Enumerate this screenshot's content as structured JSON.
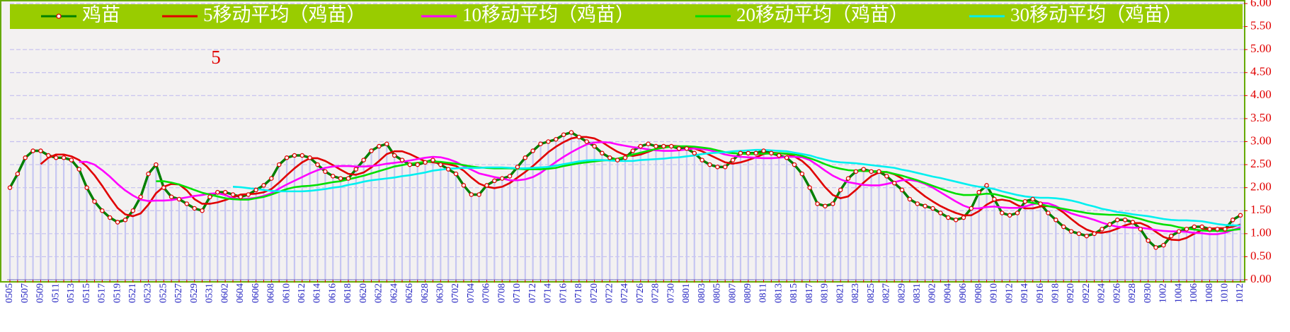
{
  "chart_data": {
    "type": "line",
    "annotation": "5",
    "legend": "top",
    "grid": true,
    "drop_lines": true,
    "categories": [
      "0505",
      null,
      "0507",
      null,
      "0509",
      null,
      "0511",
      null,
      "0513",
      null,
      "0515",
      null,
      "0517",
      null,
      "0519",
      null,
      "0521",
      null,
      "0523",
      null,
      "0525",
      null,
      "0527",
      null,
      "0529",
      null,
      "0531",
      null,
      "0602",
      null,
      "0604",
      null,
      "0606",
      null,
      "0608",
      null,
      "0610",
      null,
      "0612",
      null,
      "0614",
      null,
      "0616",
      null,
      "0618",
      null,
      "0620",
      null,
      "0622",
      null,
      "0624",
      null,
      "0626",
      null,
      "0628",
      null,
      "0630",
      null,
      "0702",
      null,
      "0704",
      null,
      "0706",
      null,
      "0708",
      null,
      "0710",
      null,
      "0712",
      null,
      "0714",
      null,
      "0716",
      null,
      "0718",
      null,
      "0720",
      null,
      "0722",
      null,
      "0724",
      null,
      "0726",
      null,
      "0728",
      null,
      "0730",
      null,
      "0801",
      null,
      "0803",
      null,
      "0805",
      null,
      "0807",
      null,
      "0809",
      null,
      "0811",
      null,
      "0813",
      null,
      "0815",
      null,
      "0817",
      null,
      "0819",
      null,
      "0821",
      null,
      "0823",
      null,
      "0825",
      null,
      "0827",
      null,
      "0829",
      null,
      "0831",
      null,
      "0902",
      null,
      "0904",
      null,
      "0906",
      null,
      "0908",
      null,
      "0910",
      null,
      "0912",
      null,
      "0914",
      null,
      "0916",
      null,
      "0918",
      null,
      "0920",
      null,
      "0922",
      null,
      "0924",
      null,
      "0926",
      null,
      "0928",
      null,
      "0930",
      null,
      "1002",
      null,
      "1004",
      null,
      "1006",
      null,
      "1008",
      null,
      "1010",
      null,
      "1012"
    ],
    "series": [
      {
        "name": "鸡苗",
        "color": "#008000",
        "values": [
          2.0,
          2.3,
          2.65,
          2.8,
          2.8,
          2.7,
          2.65,
          2.65,
          2.6,
          2.4,
          2.0,
          1.7,
          1.5,
          1.35,
          1.25,
          1.3,
          1.5,
          1.8,
          2.3,
          2.5,
          2.0,
          1.8,
          1.75,
          1.65,
          1.55,
          1.5,
          1.8,
          1.9,
          1.9,
          1.85,
          1.8,
          1.85,
          1.95,
          2.05,
          2.2,
          2.5,
          2.65,
          2.7,
          2.7,
          2.65,
          2.5,
          2.35,
          2.25,
          2.2,
          2.2,
          2.4,
          2.6,
          2.8,
          2.9,
          2.95,
          2.7,
          2.6,
          2.5,
          2.5,
          2.55,
          2.6,
          2.5,
          2.4,
          2.3,
          2.05,
          1.85,
          1.85,
          2.05,
          2.15,
          2.2,
          2.25,
          2.45,
          2.65,
          2.8,
          2.95,
          3.0,
          3.05,
          3.15,
          3.2,
          3.1,
          3.0,
          2.9,
          2.75,
          2.65,
          2.6,
          2.65,
          2.8,
          2.9,
          2.95,
          2.9,
          2.9,
          2.9,
          2.85,
          2.85,
          2.75,
          2.6,
          2.5,
          2.45,
          2.45,
          2.6,
          2.75,
          2.75,
          2.75,
          2.8,
          2.75,
          2.7,
          2.65,
          2.5,
          2.3,
          2.0,
          1.65,
          1.6,
          1.65,
          1.95,
          2.2,
          2.35,
          2.4,
          2.35,
          2.35,
          2.25,
          2.1,
          1.95,
          1.75,
          1.65,
          1.6,
          1.55,
          1.45,
          1.35,
          1.3,
          1.35,
          1.55,
          1.9,
          2.05,
          1.75,
          1.45,
          1.4,
          1.45,
          1.7,
          1.75,
          1.65,
          1.45,
          1.3,
          1.15,
          1.05,
          1.0,
          0.95,
          1.0,
          1.1,
          1.2,
          1.3,
          1.3,
          1.25,
          1.1,
          0.85,
          0.7,
          0.75,
          0.95,
          1.05,
          1.1,
          1.15,
          1.15,
          1.1,
          1.1,
          1.1,
          1.3,
          1.4
        ]
      },
      {
        "name": "5移动平均（鸡苗）",
        "color": "#e00000",
        "values": [
          null,
          null,
          null,
          null,
          2.51,
          2.65,
          2.72,
          2.72,
          2.68,
          2.6,
          2.46,
          2.27,
          2.04,
          1.79,
          1.56,
          1.42,
          1.38,
          1.44,
          1.63,
          1.88,
          2.02,
          2.08,
          2.07,
          1.94,
          1.75,
          1.65,
          1.65,
          1.68,
          1.73,
          1.79,
          1.85,
          1.86,
          1.87,
          1.9,
          1.97,
          2.11,
          2.27,
          2.42,
          2.55,
          2.64,
          2.64,
          2.58,
          2.49,
          2.39,
          2.3,
          2.28,
          2.33,
          2.44,
          2.58,
          2.73,
          2.79,
          2.79,
          2.73,
          2.65,
          2.57,
          2.55,
          2.53,
          2.51,
          2.47,
          2.37,
          2.22,
          2.09,
          2.02,
          1.99,
          2.02,
          2.1,
          2.22,
          2.34,
          2.47,
          2.62,
          2.77,
          2.89,
          2.99,
          3.07,
          3.1,
          3.1,
          3.07,
          2.99,
          2.88,
          2.78,
          2.71,
          2.69,
          2.72,
          2.78,
          2.84,
          2.89,
          2.91,
          2.9,
          2.88,
          2.85,
          2.79,
          2.71,
          2.63,
          2.55,
          2.52,
          2.55,
          2.6,
          2.66,
          2.73,
          2.76,
          2.75,
          2.73,
          2.68,
          2.58,
          2.43,
          2.22,
          2.01,
          1.84,
          1.77,
          1.81,
          1.95,
          2.11,
          2.25,
          2.33,
          2.34,
          2.29,
          2.2,
          2.08,
          1.94,
          1.81,
          1.7,
          1.6,
          1.52,
          1.45,
          1.4,
          1.4,
          1.49,
          1.63,
          1.72,
          1.74,
          1.71,
          1.62,
          1.55,
          1.55,
          1.59,
          1.6,
          1.57,
          1.46,
          1.32,
          1.19,
          1.09,
          1.03,
          1.02,
          1.05,
          1.11,
          1.18,
          1.23,
          1.23,
          1.16,
          1.04,
          0.93,
          0.87,
          0.86,
          0.91,
          1.0,
          1.08,
          1.11,
          1.12,
          1.12,
          1.15,
          1.2
        ]
      },
      {
        "name": "10移动平均（鸡苗）",
        "color": "#ff00ff",
        "values": [
          null,
          null,
          null,
          null,
          null,
          null,
          null,
          null,
          null,
          2.56,
          2.56,
          2.5,
          2.38,
          2.24,
          2.08,
          1.94,
          1.83,
          1.74,
          1.71,
          1.72,
          1.72,
          1.73,
          1.76,
          1.79,
          1.82,
          1.84,
          1.87,
          1.88,
          1.84,
          1.77,
          1.75,
          1.76,
          1.78,
          1.82,
          1.88,
          1.98,
          2.07,
          2.15,
          2.23,
          2.31,
          2.38,
          2.43,
          2.46,
          2.47,
          2.47,
          2.46,
          2.46,
          2.47,
          2.49,
          2.52,
          2.54,
          2.56,
          2.59,
          2.62,
          2.65,
          2.67,
          2.66,
          2.62,
          2.56,
          2.47,
          2.39,
          2.31,
          2.27,
          2.23,
          2.2,
          2.16,
          2.16,
          2.18,
          2.23,
          2.32,
          2.44,
          2.56,
          2.67,
          2.77,
          2.86,
          2.94,
          2.98,
          2.99,
          2.98,
          2.94,
          2.91,
          2.88,
          2.86,
          2.83,
          2.81,
          2.8,
          2.8,
          2.81,
          2.83,
          2.85,
          2.84,
          2.81,
          2.77,
          2.72,
          2.69,
          2.67,
          2.66,
          2.65,
          2.64,
          2.64,
          2.65,
          2.67,
          2.67,
          2.66,
          2.6,
          2.49,
          2.37,
          2.26,
          2.18,
          2.12,
          2.09,
          2.06,
          2.05,
          2.05,
          2.08,
          2.12,
          2.16,
          2.17,
          2.14,
          2.08,
          2.0,
          1.9,
          1.8,
          1.7,
          1.61,
          1.55,
          1.55,
          1.58,
          1.59,
          1.57,
          1.56,
          1.56,
          1.59,
          1.64,
          1.67,
          1.66,
          1.6,
          1.51,
          1.44,
          1.39,
          1.35,
          1.3,
          1.24,
          1.19,
          1.15,
          1.14,
          1.13,
          1.13,
          1.11,
          1.08,
          1.06,
          1.05,
          1.05,
          1.04,
          1.02,
          1.01,
          0.99,
          0.99,
          1.02,
          1.08,
          1.14
        ]
      },
      {
        "name": "20移动平均（鸡苗）",
        "color": "#00e000",
        "values": [
          null,
          null,
          null,
          null,
          null,
          null,
          null,
          null,
          null,
          null,
          null,
          null,
          null,
          null,
          null,
          null,
          null,
          null,
          null,
          2.14,
          2.14,
          2.11,
          2.07,
          2.01,
          1.95,
          1.89,
          1.85,
          1.81,
          1.77,
          1.75,
          1.74,
          1.74,
          1.77,
          1.8,
          1.85,
          1.91,
          1.97,
          2.01,
          2.03,
          2.04,
          2.06,
          2.09,
          2.12,
          2.14,
          2.18,
          2.22,
          2.26,
          2.31,
          2.36,
          2.41,
          2.46,
          2.49,
          2.52,
          2.54,
          2.56,
          2.57,
          2.56,
          2.54,
          2.52,
          2.49,
          2.46,
          2.44,
          2.43,
          2.42,
          2.42,
          2.42,
          2.41,
          2.4,
          2.4,
          2.4,
          2.41,
          2.43,
          2.47,
          2.5,
          2.53,
          2.55,
          2.57,
          2.59,
          2.6,
          2.63,
          2.67,
          2.72,
          2.76,
          2.8,
          2.84,
          2.87,
          2.89,
          2.9,
          2.9,
          2.89,
          2.87,
          2.85,
          2.81,
          2.77,
          2.75,
          2.74,
          2.73,
          2.73,
          2.74,
          2.74,
          2.75,
          2.74,
          2.72,
          2.69,
          2.64,
          2.58,
          2.51,
          2.45,
          2.41,
          2.38,
          2.37,
          2.36,
          2.36,
          2.35,
          2.34,
          2.3,
          2.26,
          2.21,
          2.16,
          2.1,
          2.04,
          1.98,
          1.92,
          1.87,
          1.84,
          1.84,
          1.85,
          1.87,
          1.86,
          1.82,
          1.78,
          1.73,
          1.7,
          1.67,
          1.64,
          1.6,
          1.57,
          1.54,
          1.51,
          1.48,
          1.45,
          1.43,
          1.42,
          1.41,
          1.41,
          1.4,
          1.36,
          1.32,
          1.27,
          1.23,
          1.2,
          1.18,
          1.14,
          1.11,
          1.09,
          1.07,
          1.06,
          1.06,
          1.06,
          1.08,
          1.1
        ]
      },
      {
        "name": "30移动平均（鸡苗）",
        "color": "#00f0f0",
        "values": [
          null,
          null,
          null,
          null,
          null,
          null,
          null,
          null,
          null,
          null,
          null,
          null,
          null,
          null,
          null,
          null,
          null,
          null,
          null,
          null,
          null,
          null,
          null,
          null,
          null,
          null,
          null,
          null,
          null,
          2.02,
          2.01,
          1.99,
          1.97,
          1.95,
          1.93,
          1.92,
          1.92,
          1.92,
          1.92,
          1.93,
          1.95,
          1.97,
          2.0,
          2.02,
          2.06,
          2.09,
          2.13,
          2.16,
          2.18,
          2.2,
          2.22,
          2.25,
          2.27,
          2.3,
          2.33,
          2.37,
          2.39,
          2.41,
          2.42,
          2.43,
          2.43,
          2.43,
          2.44,
          2.44,
          2.44,
          2.43,
          2.42,
          2.42,
          2.43,
          2.44,
          2.45,
          2.48,
          2.51,
          2.54,
          2.57,
          2.59,
          2.6,
          2.6,
          2.59,
          2.58,
          2.58,
          2.58,
          2.6,
          2.61,
          2.62,
          2.63,
          2.65,
          2.66,
          2.68,
          2.7,
          2.73,
          2.75,
          2.76,
          2.77,
          2.79,
          2.8,
          2.81,
          2.82,
          2.82,
          2.81,
          2.8,
          2.79,
          2.76,
          2.73,
          2.7,
          2.65,
          2.61,
          2.57,
          2.55,
          2.54,
          2.53,
          2.51,
          2.49,
          2.47,
          2.45,
          2.43,
          2.39,
          2.36,
          2.32,
          2.28,
          2.24,
          2.21,
          2.17,
          2.13,
          2.09,
          2.05,
          2.02,
          2.0,
          1.97,
          1.92,
          1.88,
          1.84,
          1.81,
          1.79,
          1.78,
          1.78,
          1.77,
          1.75,
          1.72,
          1.68,
          1.63,
          1.59,
          1.54,
          1.51,
          1.47,
          1.45,
          1.42,
          1.4,
          1.38,
          1.35,
          1.32,
          1.3,
          1.29,
          1.29,
          1.28,
          1.27,
          1.24,
          1.21,
          1.19,
          1.18,
          1.18
        ]
      }
    ],
    "ylim": [
      0,
      6
    ],
    "yticks": [
      {
        "value": 0,
        "label": "0.00"
      },
      {
        "value": 0.5,
        "label": "0.50"
      },
      {
        "value": 1,
        "label": "1.00"
      },
      {
        "value": 1.5,
        "label": "1.50"
      },
      {
        "value": 2,
        "label": "2.00"
      },
      {
        "value": 2.5,
        "label": "2.50"
      },
      {
        "value": 3,
        "label": "3.00"
      },
      {
        "value": 3.5,
        "label": "3.50"
      },
      {
        "value": 4,
        "label": "4.00"
      },
      {
        "value": 4.5,
        "label": "4.50"
      },
      {
        "value": 5,
        "label": "5.00"
      },
      {
        "value": 5.5,
        "label": "5.50"
      },
      {
        "value": 6,
        "label": "6.00"
      }
    ]
  }
}
